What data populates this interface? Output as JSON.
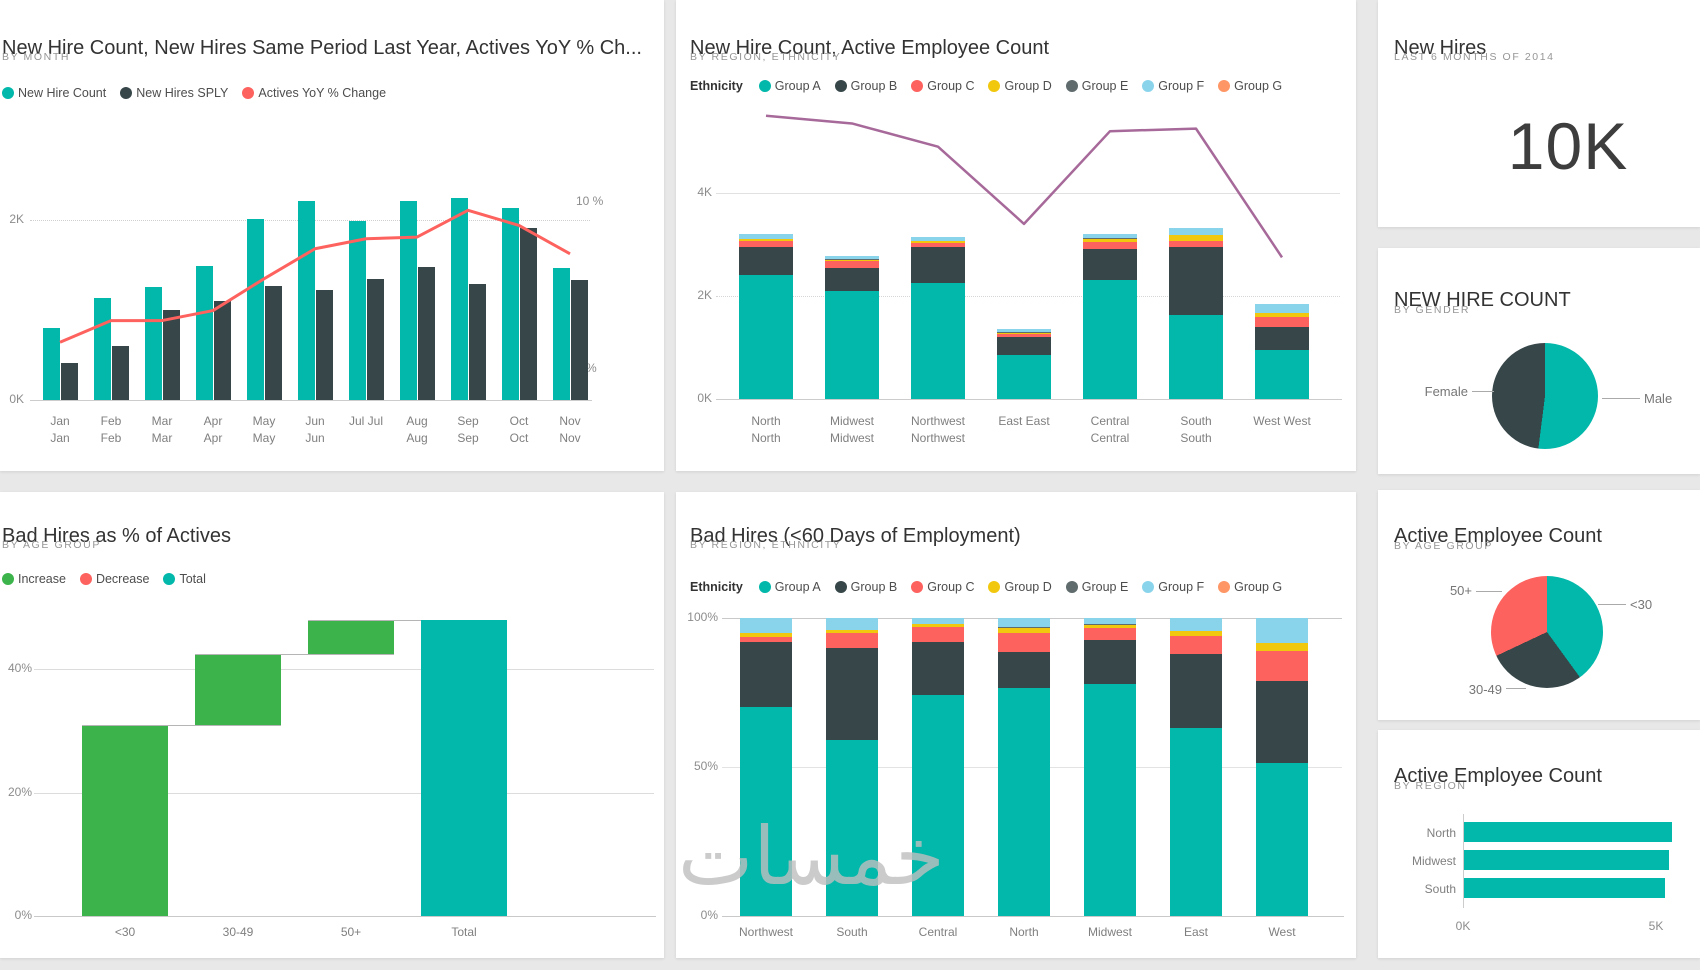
{
  "page": {
    "background": "#e8e8e8",
    "watermark": "خمسات"
  },
  "palette": {
    "teal": "#01B8AA",
    "dark": "#374649",
    "red": "#FD625E",
    "yellow": "#F2C80F",
    "gray": "#5F6B6D",
    "lightblue": "#8AD4EB",
    "orange": "#FE9666",
    "purple": "#A66999",
    "green": "#3CB44B"
  },
  "chart_data": [
    {
      "id": "new-hire-count-by-month",
      "type": "clustered-bar+line",
      "title": "New Hire Count, New Hires Same Period Last Year, Actives YoY % Ch...",
      "subtitle": "BY MONTH",
      "legend": [
        {
          "label": "New Hire Count",
          "color": "#01B8AA"
        },
        {
          "label": "New Hires SPLY",
          "color": "#374649"
        },
        {
          "label": "Actives YoY % Change",
          "color": "#FD625E"
        }
      ],
      "categories": [
        "Jan",
        "Feb",
        "Mar",
        "Apr",
        "May",
        "Jun",
        "Jul",
        "Aug",
        "Sep",
        "Oct",
        "Nov"
      ],
      "single_line_categories": [
        "Jul"
      ],
      "series": [
        {
          "name": "New Hire Count",
          "color": "#01B8AA",
          "values": [
            0.8,
            1.13,
            1.26,
            1.49,
            2.01,
            2.21,
            1.99,
            2.21,
            2.24,
            2.13,
            1.47
          ]
        },
        {
          "name": "New Hires SPLY",
          "color": "#374649",
          "values": [
            0.41,
            0.6,
            1.0,
            1.1,
            1.27,
            1.22,
            1.34,
            1.48,
            1.29,
            1.91,
            1.33
          ]
        }
      ],
      "line_series": {
        "name": "Actives YoY % Change",
        "color": "#FD625E",
        "unit": "%",
        "values": [
          1.6,
          2.9,
          2.9,
          3.5,
          5.4,
          7.2,
          7.8,
          7.9,
          9.5,
          8.6,
          6.9
        ]
      },
      "y_left": {
        "ticks": [
          "0K",
          "2K"
        ],
        "unit": "K",
        "grid_at": 2
      },
      "y_right": {
        "ticks": [
          "0 %",
          "10 %"
        ],
        "min": 0,
        "max": 10
      }
    },
    {
      "id": "new-hire-active-by-region",
      "type": "stacked-bar+line",
      "title": "New Hire Count, Active Employee Count",
      "subtitle": "BY REGION, ETHNICITY",
      "legend_title": "Ethnicity",
      "legend": [
        {
          "label": "Group A",
          "color": "#01B8AA"
        },
        {
          "label": "Group B",
          "color": "#374649"
        },
        {
          "label": "Group C",
          "color": "#FD625E"
        },
        {
          "label": "Group D",
          "color": "#F2C80F"
        },
        {
          "label": "Group E",
          "color": "#5F6B6D"
        },
        {
          "label": "Group F",
          "color": "#8AD4EB"
        },
        {
          "label": "Group G",
          "color": "#FE9666"
        }
      ],
      "categories": [
        "North",
        "Midwest",
        "Northwest",
        "East",
        "Central",
        "South",
        "West"
      ],
      "single_line_categories": [
        "East",
        "West"
      ],
      "series": [
        {
          "name": "Group A",
          "color": "#01B8AA",
          "values": [
            2.4,
            2.1,
            2.25,
            0.85,
            2.32,
            1.63,
            0.95
          ]
        },
        {
          "name": "Group B",
          "color": "#374649",
          "values": [
            0.55,
            0.45,
            0.7,
            0.35,
            0.6,
            1.33,
            0.45
          ]
        },
        {
          "name": "Group C",
          "color": "#FD625E",
          "values": [
            0.12,
            0.12,
            0.07,
            0.06,
            0.12,
            0.1,
            0.2
          ]
        },
        {
          "name": "Group D",
          "color": "#F2C80F",
          "values": [
            0.04,
            0.03,
            0.04,
            0.04,
            0.06,
            0.12,
            0.07
          ]
        },
        {
          "name": "Group E",
          "color": "#5F6B6D",
          "values": [
            0.0,
            0.02,
            0.0,
            0.01,
            0.02,
            0.0,
            0.0
          ]
        },
        {
          "name": "Group F",
          "color": "#8AD4EB",
          "values": [
            0.09,
            0.05,
            0.09,
            0.05,
            0.08,
            0.15,
            0.18
          ]
        },
        {
          "name": "Group G",
          "color": "#FE9666",
          "values": [
            0,
            0,
            0,
            0,
            0,
            0,
            0
          ]
        }
      ],
      "line_series": {
        "name": "Active Employee Count",
        "color": "#A66999",
        "unit": "K",
        "values": [
          5.5,
          5.35,
          4.9,
          3.4,
          5.2,
          5.25,
          2.75
        ]
      },
      "y_left": {
        "ticks": [
          "0K",
          "2K",
          "4K"
        ],
        "unit": "K"
      }
    },
    {
      "id": "new-hires-card",
      "type": "card",
      "title": "New Hires",
      "subtitle": "LAST 6 MONTHS OF 2014",
      "value": "10K"
    },
    {
      "id": "new-hire-count-by-gender",
      "type": "pie",
      "title": "NEW HIRE COUNT",
      "subtitle": "BY GENDER",
      "slices": [
        {
          "label": "Male",
          "pct": 52,
          "color": "#01B8AA"
        },
        {
          "label": "Female",
          "pct": 48,
          "color": "#374649"
        }
      ]
    },
    {
      "id": "bad-hires-pct-of-actives",
      "type": "waterfall",
      "title": "Bad Hires as % of Actives",
      "subtitle": "BY AGE GROUP",
      "legend": [
        {
          "label": "Increase",
          "color": "#3CB44B"
        },
        {
          "label": "Decrease",
          "color": "#FD625E"
        },
        {
          "label": "Total",
          "color": "#01B8AA"
        }
      ],
      "categories": [
        "<30",
        "30-49",
        "50+",
        "Total"
      ],
      "steps": [
        {
          "category": "<30",
          "from": 0,
          "to": 31,
          "delta": 31,
          "kind": "increase"
        },
        {
          "category": "30-49",
          "from": 31,
          "to": 42.5,
          "delta": 11.5,
          "kind": "increase"
        },
        {
          "category": "50+",
          "from": 42.5,
          "to": 48,
          "delta": 5.5,
          "kind": "increase"
        },
        {
          "category": "Total",
          "from": 0,
          "to": 48,
          "delta": 48,
          "kind": "total"
        }
      ],
      "y_ticks": [
        "0%",
        "20%",
        "40%"
      ]
    },
    {
      "id": "bad-hires-by-region",
      "type": "100-stacked-bar",
      "title": "Bad Hires (<60 Days of Employment)",
      "subtitle": "BY REGION, ETHNICITY",
      "legend_title": "Ethnicity",
      "legend": [
        {
          "label": "Group A",
          "color": "#01B8AA"
        },
        {
          "label": "Group B",
          "color": "#374649"
        },
        {
          "label": "Group C",
          "color": "#FD625E"
        },
        {
          "label": "Group D",
          "color": "#F2C80F"
        },
        {
          "label": "Group E",
          "color": "#5F6B6D"
        },
        {
          "label": "Group F",
          "color": "#8AD4EB"
        },
        {
          "label": "Group G",
          "color": "#FE9666"
        }
      ],
      "categories": [
        "Northwest",
        "South",
        "Central",
        "North",
        "Midwest",
        "East",
        "West"
      ],
      "series": [
        {
          "name": "Group A",
          "color": "#01B8AA",
          "values": [
            70,
            59,
            74,
            76.5,
            78,
            63,
            51.5
          ]
        },
        {
          "name": "Group B",
          "color": "#374649",
          "values": [
            22,
            31,
            18,
            12,
            14.5,
            25,
            27.5
          ]
        },
        {
          "name": "Group C",
          "color": "#FD625E",
          "values": [
            1.5,
            5,
            5,
            6.5,
            4,
            6,
            10
          ]
        },
        {
          "name": "Group D",
          "color": "#F2C80F",
          "values": [
            1.5,
            1,
            1,
            1.5,
            1,
            1.5,
            2.5
          ]
        },
        {
          "name": "Group E",
          "color": "#5F6B6D",
          "values": [
            0,
            0,
            0,
            0.5,
            0.5,
            0,
            0
          ]
        },
        {
          "name": "Group F",
          "color": "#8AD4EB",
          "values": [
            5,
            4,
            2,
            3,
            2,
            4.5,
            8.5
          ]
        },
        {
          "name": "Group G",
          "color": "#FE9666",
          "values": [
            0,
            0,
            0,
            0,
            0,
            0,
            0
          ]
        }
      ],
      "y_ticks": [
        "0%",
        "50%",
        "100%"
      ]
    },
    {
      "id": "active-employee-count-by-age",
      "type": "pie",
      "title": "Active Employee Count",
      "subtitle": "BY AGE GROUP",
      "slices": [
        {
          "label": "<30",
          "pct": 40,
          "color": "#01B8AA"
        },
        {
          "label": "30-49",
          "pct": 28,
          "color": "#374649"
        },
        {
          "label": "50+",
          "pct": 32,
          "color": "#FD625E"
        }
      ]
    },
    {
      "id": "active-employee-count-by-region",
      "type": "bar-horizontal",
      "title": "Active Employee Count",
      "subtitle": "BY REGION",
      "categories": [
        "North",
        "Midwest",
        "South"
      ],
      "values_k": [
        5.4,
        5.3,
        5.2
      ],
      "x_ticks": [
        "0K",
        "5K"
      ],
      "x_max_k": 5.6,
      "bar_color": "#01B8AA"
    }
  ]
}
